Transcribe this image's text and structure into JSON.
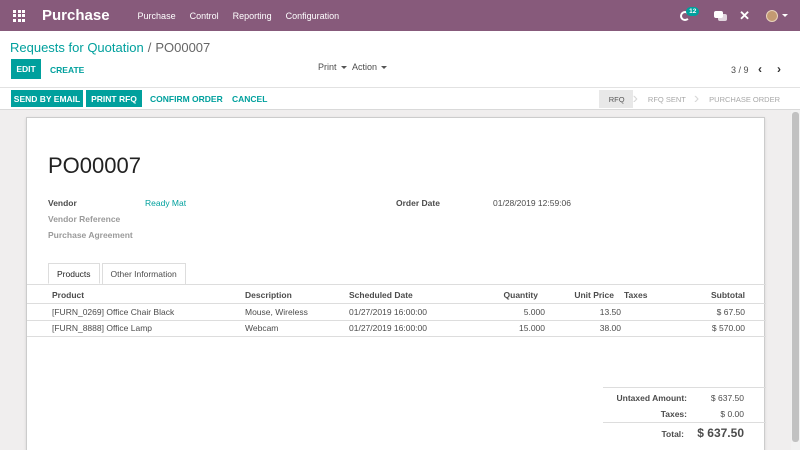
{
  "navbar": {
    "app_title": "Purchase",
    "menu": [
      "Purchase",
      "Control",
      "Reporting",
      "Configuration"
    ],
    "activity_count": "12"
  },
  "breadcrumb": {
    "parent": "Requests for Quotation",
    "separator": "/",
    "current": "PO00007"
  },
  "toolbar": {
    "edit": "EDIT",
    "create": "CREATE",
    "print": "Print",
    "action": "Action",
    "pager": "3 / 9",
    "prev": "‹",
    "next": "›"
  },
  "statusbar": {
    "send_email": "SEND BY EMAIL",
    "print_rfq": "PRINT RFQ",
    "confirm": "CONFIRM ORDER",
    "cancel": "CANCEL",
    "stages": [
      "RFQ",
      "RFQ SENT",
      "PURCHASE ORDER"
    ],
    "active_stage": "RFQ"
  },
  "form": {
    "name": "PO00007",
    "vendor_label": "Vendor",
    "vendor": "Ready Mat",
    "vendor_ref_label": "Vendor Reference",
    "agreement_label": "Purchase Agreement",
    "order_date_label": "Order Date",
    "order_date": "01/28/2019 12:59:06"
  },
  "tabs": [
    "Products",
    "Other Information"
  ],
  "table": {
    "headers": [
      "Product",
      "Description",
      "Scheduled Date",
      "Quantity",
      "Unit Price",
      "Taxes",
      "Subtotal"
    ],
    "rows": [
      {
        "product": "[FURN_0269] Office Chair Black",
        "description": "Mouse, Wireless",
        "date": "01/27/2019 16:00:00",
        "qty": "5.000",
        "price": "13.50",
        "taxes": "",
        "subtotal": "$ 67.50"
      },
      {
        "product": "[FURN_8888] Office Lamp",
        "description": "Webcam",
        "date": "01/27/2019 16:00:00",
        "qty": "15.000",
        "price": "38.00",
        "taxes": "",
        "subtotal": "$ 570.00"
      }
    ]
  },
  "totals": {
    "untaxed_label": "Untaxed Amount:",
    "untaxed": "$ 637.50",
    "taxes_label": "Taxes:",
    "taxes": "$ 0.00",
    "total_label": "Total:",
    "total": "$ 637.50"
  },
  "colors": {
    "brand": "#875a7b",
    "accent": "#00a09d"
  }
}
